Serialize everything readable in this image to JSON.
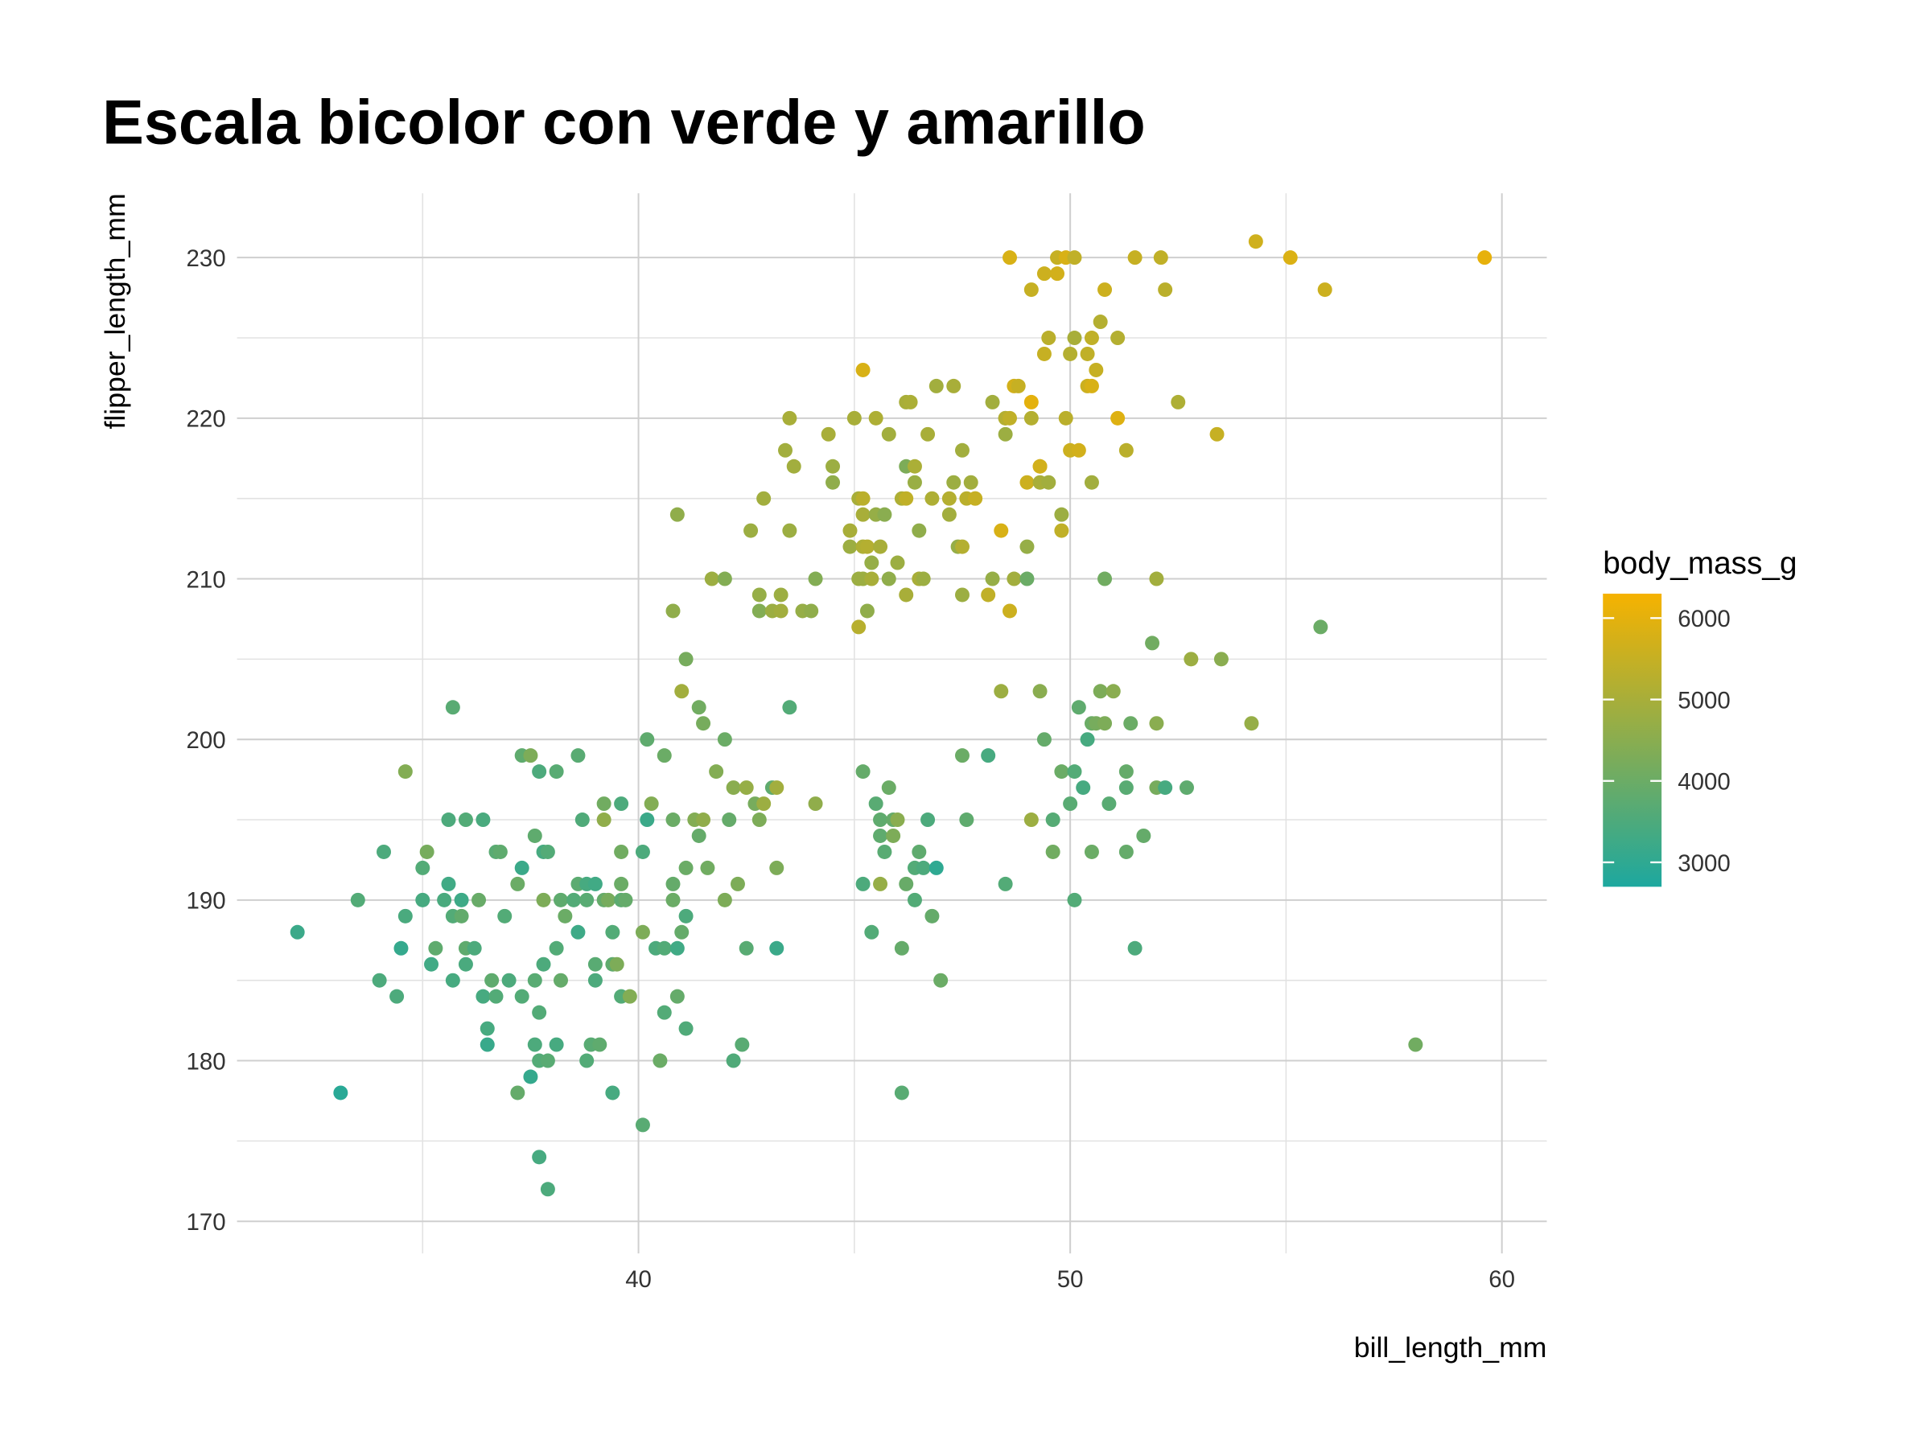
{
  "chart_data": {
    "type": "scatter",
    "title": "Escala bicolor con verde y amarillo",
    "x_label": "bill_length_mm",
    "y_label": "flipper_length_mm",
    "color_label": "body_mass_g",
    "xlim": [
      30.7,
      61.04
    ],
    "ylim": [
      168,
      234
    ],
    "xticks": [
      40,
      50,
      60
    ],
    "yticks": [
      170,
      180,
      190,
      200,
      210,
      220,
      230
    ],
    "minor_xticks": [
      35,
      45,
      55
    ],
    "minor_yticks": [
      175,
      185,
      195,
      205,
      215,
      225
    ],
    "grid": true,
    "color_lim": [
      2700,
      6300
    ],
    "color_ticks": [
      3000,
      4000,
      5000,
      6000
    ],
    "low_color": "#1da89f",
    "high_color": "#f6b200",
    "x": [
      32.1,
      33.1,
      33.5,
      34.0,
      34.1,
      34.4,
      34.5,
      34.6,
      34.6,
      35.0,
      35.0,
      35.1,
      35.2,
      35.3,
      35.5,
      35.6,
      35.6,
      35.7,
      35.7,
      35.7,
      35.9,
      35.9,
      36.0,
      36.0,
      36.0,
      36.2,
      36.3,
      36.4,
      36.4,
      36.5,
      36.5,
      36.6,
      36.7,
      36.7,
      36.8,
      36.9,
      37.0,
      37.2,
      37.2,
      37.3,
      37.3,
      37.3,
      37.5,
      37.5,
      37.6,
      37.6,
      37.6,
      37.7,
      37.7,
      37.7,
      37.7,
      37.8,
      37.8,
      37.8,
      37.9,
      37.9,
      37.9,
      38.1,
      38.1,
      38.1,
      38.2,
      38.2,
      38.3,
      38.5,
      38.6,
      38.6,
      38.6,
      38.7,
      38.8,
      38.8,
      38.8,
      38.9,
      39.0,
      39.0,
      39.0,
      39.1,
      39.2,
      39.2,
      39.2,
      39.3,
      39.4,
      39.4,
      39.4,
      39.5,
      39.6,
      39.6,
      39.6,
      39.6,
      39.6,
      39.7,
      39.8,
      40.1,
      40.1,
      40.1,
      40.2,
      40.2,
      40.3,
      40.4,
      40.5,
      40.6,
      40.6,
      40.6,
      40.8,
      40.8,
      40.8,
      40.8,
      40.9,
      40.9,
      40.9,
      41.0,
      41.0,
      41.1,
      41.1,
      41.1,
      41.1,
      41.3,
      41.4,
      41.4,
      41.5,
      41.5,
      41.6,
      41.7,
      41.8,
      42.0,
      42.0,
      42.0,
      42.1,
      42.2,
      42.2,
      42.3,
      42.4,
      42.5,
      42.5,
      42.6,
      42.7,
      42.8,
      42.8,
      42.8,
      42.9,
      42.9,
      43.1,
      43.1,
      43.2,
      43.2,
      43.2,
      43.3,
      43.3,
      43.4,
      43.5,
      43.5,
      43.5,
      43.6,
      43.8,
      44.0,
      44.1,
      44.1,
      44.4,
      44.5,
      44.5,
      44.9,
      44.9,
      45.0,
      45.1,
      45.1,
      45.1,
      45.2,
      45.2,
      45.2,
      45.2,
      45.2,
      45.2,
      45.2,
      45.3,
      45.3,
      45.4,
      45.4,
      45.4,
      45.5,
      45.5,
      45.5,
      45.6,
      45.6,
      45.6,
      45.6,
      45.7,
      45.7,
      45.8,
      45.8,
      45.8,
      45.9,
      45.9,
      46.0,
      46.0,
      46.1,
      46.1,
      46.1,
      46.2,
      46.2,
      46.2,
      46.2,
      46.2,
      46.3,
      46.4,
      46.4,
      46.4,
      46.4,
      46.5,
      46.5,
      46.5,
      46.6,
      46.6,
      46.7,
      46.7,
      46.8,
      46.8,
      46.9,
      46.9,
      47.0,
      47.2,
      47.2,
      47.3,
      47.3,
      47.4,
      47.5,
      47.5,
      47.5,
      47.5,
      47.6,
      47.6,
      47.7,
      47.8,
      47.8,
      48.1,
      48.1,
      48.2,
      48.2,
      48.4,
      48.4,
      48.5,
      48.5,
      48.5,
      48.5,
      48.6,
      48.6,
      48.6,
      48.7,
      48.7,
      48.8,
      49.0,
      49.0,
      49.0,
      49.1,
      49.1,
      49.1,
      49.1,
      49.3,
      49.3,
      49.3,
      49.3,
      49.4,
      49.4,
      49.4,
      49.5,
      49.5,
      49.6,
      49.6,
      49.7,
      49.7,
      49.8,
      49.8,
      49.8,
      49.9,
      49.9,
      50.0,
      50.0,
      50.0,
      50.1,
      50.1,
      50.1,
      50.1,
      50.2,
      50.2,
      50.3,
      50.4,
      50.4,
      50.4,
      50.5,
      50.5,
      50.5,
      50.5,
      50.5,
      50.6,
      50.6,
      50.7,
      50.7,
      50.8,
      50.8,
      50.8,
      50.9,
      51.0,
      51.1,
      51.1,
      51.3,
      51.3,
      51.3,
      51.3,
      51.4,
      51.5,
      51.5,
      51.7,
      51.9,
      52.0,
      52.0,
      52.0,
      52.1,
      52.2,
      52.2,
      52.5,
      52.7,
      52.8,
      53.4,
      53.5,
      54.2,
      54.3,
      55.1,
      55.8,
      55.9,
      58.0,
      59.6
    ],
    "values": [
      188,
      178,
      190,
      185,
      193,
      184,
      187,
      189,
      198,
      190,
      192,
      193,
      186,
      187,
      190,
      195,
      191,
      202,
      185,
      189,
      190,
      189,
      186,
      195,
      187,
      187,
      190,
      195,
      184,
      182,
      181,
      185,
      184,
      193,
      193,
      189,
      185,
      191,
      178,
      184,
      199,
      192,
      199,
      179,
      194,
      181,
      185,
      183,
      180,
      198,
      174,
      190,
      186,
      193,
      180,
      172,
      193,
      198,
      181,
      187,
      190,
      185,
      189,
      190,
      199,
      188,
      191,
      195,
      180,
      190,
      191,
      181,
      186,
      191,
      185,
      181,
      196,
      195,
      190,
      190,
      178,
      186,
      188,
      186,
      196,
      191,
      190,
      193,
      184,
      190,
      184,
      188,
      176,
      193,
      200,
      195,
      196,
      187,
      180,
      183,
      199,
      187,
      190,
      195,
      208,
      191,
      187,
      184,
      214,
      203,
      188,
      189,
      192,
      182,
      205,
      195,
      194,
      202,
      195,
      201,
      192,
      210,
      198,
      190,
      200,
      210,
      195,
      197,
      180,
      191,
      181,
      187,
      197,
      213,
      196,
      208,
      195,
      209,
      196,
      215,
      197,
      208,
      192,
      187,
      197,
      208,
      209,
      218,
      202,
      213,
      220,
      217,
      208,
      208,
      196,
      210,
      219,
      216,
      217,
      213,
      212,
      220,
      210,
      207,
      215,
      223,
      191,
      214,
      198,
      212,
      215,
      210,
      208,
      212,
      188,
      210,
      211,
      196,
      220,
      214,
      212,
      191,
      194,
      195,
      193,
      214,
      219,
      210,
      197,
      195,
      194,
      195,
      211,
      178,
      215,
      187,
      209,
      221,
      217,
      215,
      191,
      221,
      216,
      192,
      190,
      217,
      210,
      213,
      193,
      210,
      192,
      219,
      195,
      189,
      215,
      192,
      222,
      185,
      215,
      214,
      216,
      222,
      212,
      212,
      209,
      218,
      199,
      215,
      195,
      216,
      215,
      215,
      209,
      199,
      221,
      210,
      213,
      203,
      220,
      219,
      191,
      220,
      220,
      230,
      208,
      210,
      222,
      222,
      216,
      210,
      212,
      228,
      220,
      221,
      195,
      217,
      203,
      217,
      216,
      229,
      200,
      224,
      225,
      216,
      193,
      195,
      229,
      230,
      198,
      213,
      214,
      220,
      230,
      218,
      196,
      224,
      230,
      190,
      225,
      198,
      218,
      202,
      197,
      224,
      222,
      200,
      225,
      216,
      201,
      222,
      193,
      201,
      223,
      203,
      226,
      228,
      210,
      201,
      196,
      203,
      225,
      220,
      218,
      193,
      198,
      197,
      201,
      187,
      230,
      194,
      206,
      197,
      201,
      210,
      230,
      228,
      197,
      221,
      197,
      205,
      219,
      205,
      201,
      231,
      230,
      207,
      228,
      181,
      230
    ],
    "color_values": [
      3200,
      2900,
      3600,
      3500,
      3500,
      3500,
      3100,
      3450,
      4400,
      3400,
      3600,
      4200,
      3300,
      3800,
      3450,
      3500,
      3300,
      3700,
      3400,
      3600,
      3250,
      3850,
      3450,
      3600,
      3800,
      3500,
      3950,
      3450,
      3400,
      3400,
      3150,
      3800,
      3600,
      3700,
      3800,
      3600,
      3500,
      4000,
      3900,
      3600,
      3800,
      3200,
      4300,
      3100,
      3800,
      3500,
      3700,
      3600,
      3600,
      3500,
      3400,
      4300,
      3500,
      3400,
      3700,
      3500,
      3600,
      3700,
      3400,
      3600,
      3800,
      3900,
      4000,
      3600,
      3700,
      3250,
      3750,
      3550,
      3600,
      3700,
      3400,
      3700,
      3700,
      3300,
      3500,
      3800,
      4100,
      4600,
      3900,
      4200,
      3400,
      3800,
      3600,
      4300,
      3500,
      4000,
      3750,
      4100,
      3600,
      3900,
      4400,
      4300,
      3700,
      3500,
      3800,
      3200,
      4400,
      3500,
      4000,
      3600,
      4000,
      3600,
      4000,
      4000,
      4600,
      3900,
      3300,
      3900,
      4600,
      4900,
      3900,
      3500,
      4000,
      3550,
      4200,
      4400,
      3900,
      4100,
      4600,
      4200,
      4100,
      4800,
      4400,
      4300,
      4000,
      4400,
      3900,
      4500,
      3550,
      4300,
      3700,
      3700,
      4700,
      4800,
      4200,
      4400,
      4300,
      4700,
      4800,
      4900,
      3800,
      4800,
      4300,
      3200,
      4900,
      4900,
      4800,
      4900,
      3600,
      4800,
      5000,
      4900,
      4700,
      4600,
      4600,
      4400,
      5000,
      4600,
      4800,
      5000,
      4800,
      5000,
      4800,
      5250,
      5000,
      5800,
      3500,
      5000,
      3900,
      5100,
      5300,
      4800,
      4600,
      5200,
      3600,
      5000,
      4700,
      3700,
      5100,
      4700,
      5000,
      4700,
      3800,
      3800,
      3700,
      4500,
      4900,
      4600,
      4000,
      3900,
      4300,
      4500,
      4800,
      3700,
      5100,
      3900,
      5000,
      5000,
      4300,
      5400,
      3950,
      5050,
      4750,
      3600,
      3600,
      5050,
      5000,
      4600,
      3800,
      4800,
      3500,
      5000,
      3500,
      3900,
      5100,
      3000,
      4900,
      4000,
      5200,
      4900,
      4800,
      5000,
      4700,
      5200,
      4800,
      4900,
      4000,
      5300,
      3800,
      4900,
      5700,
      5500,
      5400,
      3400,
      4900,
      4700,
      5800,
      4800,
      5000,
      4800,
      3600,
      5200,
      5400,
      5800,
      5600,
      4900,
      5700,
      5500,
      5600,
      4000,
      4700,
      5500,
      5200,
      6000,
      4800,
      5800,
      4500,
      5700,
      5000,
      5600,
      3900,
      5500,
      5300,
      4900,
      4100,
      3650,
      5700,
      5500,
      4000,
      5400,
      4800,
      5300,
      5800,
      5600,
      3700,
      5200,
      5400,
      3600,
      5000,
      3600,
      5700,
      3800,
      3400,
      5400,
      5600,
      3400,
      5400,
      4900,
      4000,
      5800,
      4000,
      4200,
      5500,
      4300,
      5200,
      5600,
      4100,
      4300,
      3700,
      4500,
      5200,
      5900,
      5300,
      3900,
      3900,
      3700,
      4000,
      3500,
      5500,
      3900,
      4100,
      4200,
      4500,
      4900,
      5400,
      5300,
      3400,
      5100,
      3800,
      4800,
      5500,
      4500,
      4700,
      5650,
      5850,
      4000,
      5600,
      4100,
      6050
    ]
  }
}
